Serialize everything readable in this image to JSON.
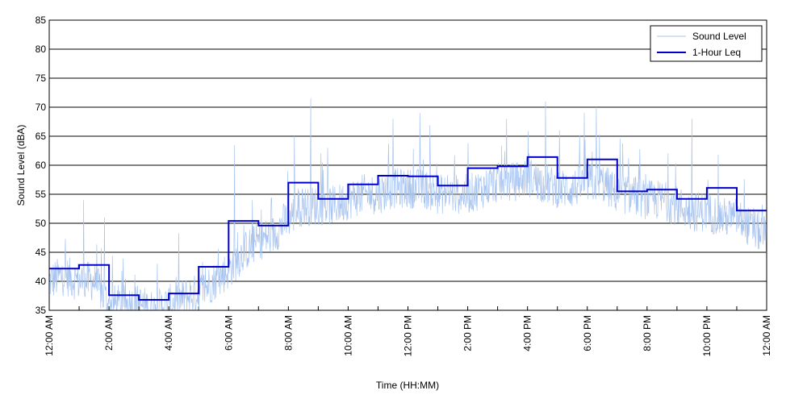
{
  "chart_data": {
    "type": "line",
    "title": "",
    "xlabel": "Time (HH:MM)",
    "ylabel": "Sound Level (dBA)",
    "xlim": [
      0,
      24
    ],
    "ylim": [
      35,
      85
    ],
    "y_ticks": [
      35,
      40,
      45,
      50,
      55,
      60,
      65,
      70,
      75,
      80,
      85
    ],
    "x_ticks": [
      {
        "hour": 0,
        "label": "12:00 AM"
      },
      {
        "hour": 2,
        "label": "2:00 AM"
      },
      {
        "hour": 4,
        "label": "4:00 AM"
      },
      {
        "hour": 6,
        "label": "6:00 AM"
      },
      {
        "hour": 8,
        "label": "8:00 AM"
      },
      {
        "hour": 10,
        "label": "10:00 AM"
      },
      {
        "hour": 12,
        "label": "12:00 PM"
      },
      {
        "hour": 14,
        "label": "2:00 PM"
      },
      {
        "hour": 16,
        "label": "4:00 PM"
      },
      {
        "hour": 18,
        "label": "6:00 PM"
      },
      {
        "hour": 20,
        "label": "8:00 PM"
      },
      {
        "hour": 22,
        "label": "10:00 PM"
      },
      {
        "hour": 24,
        "label": "12:00 AM"
      }
    ],
    "grid": "horizontal",
    "legend_position": "top-right",
    "series": [
      {
        "name": "Sound Level",
        "color": "#a8c4f0",
        "style": "thin-noisy",
        "hours": [
          0,
          0.5,
          1.0,
          1.5,
          2.0,
          2.5,
          3.0,
          3.5,
          4.0,
          4.5,
          5.0,
          5.5,
          6.0,
          6.5,
          7.0,
          7.5,
          8.0,
          8.5,
          9.0,
          9.5,
          10.0,
          10.5,
          11.0,
          11.5,
          12.0,
          12.5,
          13.0,
          13.5,
          14.0,
          14.5,
          15.0,
          15.5,
          16.0,
          16.5,
          17.0,
          17.5,
          18.0,
          18.5,
          19.0,
          19.5,
          20.0,
          20.5,
          21.0,
          21.5,
          22.0,
          22.5,
          23.0,
          23.5,
          24.0
        ],
        "values": [
          40,
          41,
          40,
          40,
          36,
          36,
          36,
          35,
          36,
          37,
          38,
          40,
          42,
          45,
          47,
          48,
          51,
          53,
          53,
          53,
          54,
          55,
          55,
          56,
          56,
          56,
          55,
          55,
          55,
          56,
          57,
          57,
          58,
          57,
          56,
          56,
          57,
          57,
          55,
          55,
          54,
          54,
          53,
          52,
          52,
          51,
          51,
          49,
          48
        ],
        "spikes": [
          {
            "hour": 1.15,
            "value": 54
          },
          {
            "hour": 1.85,
            "value": 51
          },
          {
            "hour": 6.2,
            "value": 63.5
          },
          {
            "hour": 8.75,
            "value": 71.5
          },
          {
            "hour": 11.5,
            "value": 68
          },
          {
            "hour": 12.4,
            "value": 69
          },
          {
            "hour": 15.3,
            "value": 68
          },
          {
            "hour": 16.6,
            "value": 71
          },
          {
            "hour": 17.9,
            "value": 69
          },
          {
            "hour": 18.3,
            "value": 70
          },
          {
            "hour": 21.5,
            "value": 68
          },
          {
            "hour": 8.2,
            "value": 65
          }
        ]
      },
      {
        "name": "1-Hour Leq",
        "color": "#0000cc",
        "style": "step",
        "step_values": [
          42.2,
          42.8,
          37.6,
          36.8,
          37.9,
          42.5,
          50.4,
          49.6,
          57.0,
          54.2,
          56.7,
          58.2,
          58.1,
          56.5,
          59.5,
          59.8,
          61.4,
          57.8,
          61.0,
          55.5,
          55.8,
          54.2,
          56.1,
          52.2
        ]
      }
    ]
  }
}
